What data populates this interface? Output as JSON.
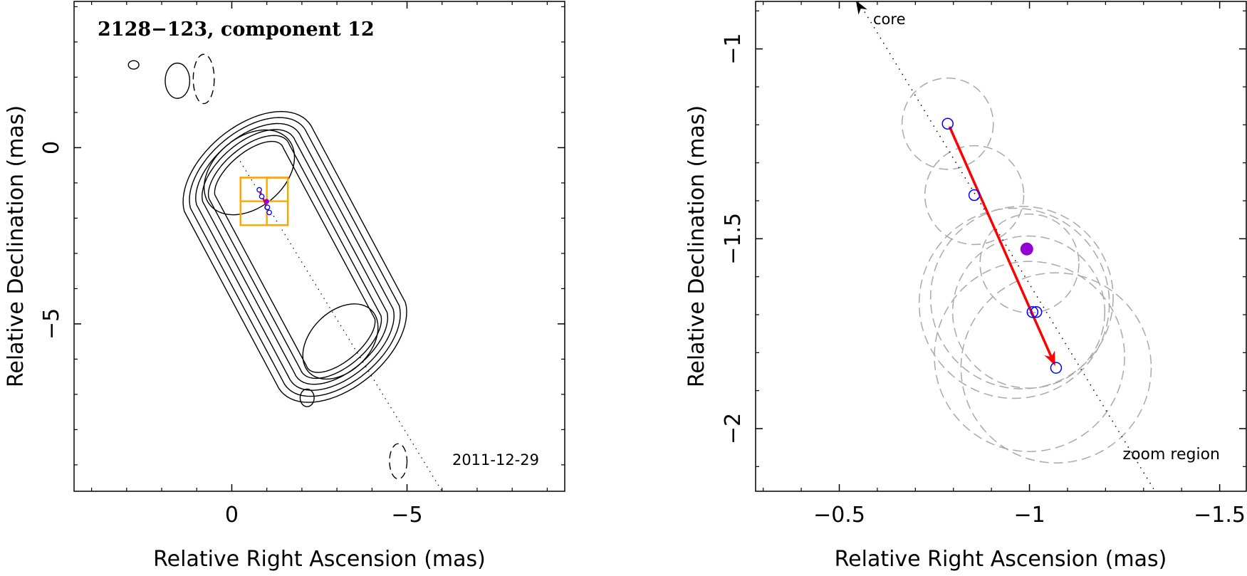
{
  "chart_data": [
    {
      "type": "contour",
      "title": "2128−123, component 12",
      "date_label": "2011-12-29",
      "xlabel": "Relative Right Ascension (mas)",
      "ylabel": "Relative Declination (mas)",
      "xlim": [
        4.5,
        -9.5
      ],
      "ylim": [
        -9.75,
        4.15
      ],
      "x_ticks": [
        {
          "v": 0,
          "label": "0"
        },
        {
          "v": -5,
          "label": "−5"
        }
      ],
      "y_ticks": [
        {
          "v": 0,
          "label": "0"
        },
        {
          "v": -5,
          "label": "−5"
        }
      ],
      "jet_axis": {
        "start": [
          0,
          0
        ],
        "end": [
          -6.0,
          -9.75
        ]
      },
      "contours": {
        "colors": {
          "positive": "#000000",
          "negative": "#000000"
        },
        "positive": [
          {
            "center": [
              -0.5,
              -0.7
            ],
            "rx": 1.0,
            "ry": 1.45,
            "angle": 50
          },
          {
            "center": [
              -3.1,
              -5.5
            ],
            "rx": 0.85,
            "ry": 1.25,
            "angle": 45
          },
          {
            "center": [
              1.55,
              1.9
            ],
            "rx": 0.35,
            "ry": 0.5,
            "angle": 0
          },
          {
            "center": [
              2.8,
              2.35
            ],
            "rx": 0.15,
            "ry": 0.12,
            "angle": 0
          },
          {
            "center": [
              -2.15,
              -7.1
            ],
            "rx": 0.2,
            "ry": 0.25,
            "angle": 0
          }
        ],
        "outer_levels": [
          {
            "ax": 1.3,
            "ay": 2.2,
            "scale": 1.0
          },
          {
            "ax": 1.15,
            "ay": 2.0,
            "scale": 0.9
          },
          {
            "ax": 1.0,
            "ay": 1.8,
            "scale": 0.8
          },
          {
            "ax": 0.85,
            "ay": 1.6,
            "scale": 0.7
          },
          {
            "ax": 0.7,
            "ay": 1.4,
            "scale": 0.6
          },
          {
            "ax": 0.55,
            "ay": 1.2,
            "scale": 0.5
          }
        ],
        "negative": [
          {
            "center": [
              0.8,
              1.95
            ],
            "rx": 0.3,
            "ry": 0.7,
            "angle": 0
          },
          {
            "center": [
              -4.75,
              -8.9
            ],
            "rx": 0.25,
            "ry": 0.5,
            "angle": 0
          }
        ]
      },
      "zoom_boxes": [
        {
          "x": [
            -0.25,
            -1.6
          ],
          "y": [
            -0.85,
            -2.2
          ]
        },
        {
          "x": [
            -0.25,
            -1.6
          ],
          "y": [
            -0.85,
            -1.52
          ]
        },
        {
          "x": [
            -1.0,
            -1.6
          ],
          "y": [
            -0.85,
            -2.2
          ]
        }
      ],
      "colors": {
        "zoom_box": "#ffa500"
      }
    },
    {
      "type": "scatter",
      "xlabel": "Relative Right Ascension (mas)",
      "ylabel": "Relative Declination (mas)",
      "xlim": [
        -0.28,
        -1.57
      ],
      "ylim": [
        -2.165,
        -0.875
      ],
      "x_ticks": [
        {
          "v": -0.5,
          "label": "−0.5"
        },
        {
          "v": -1.0,
          "label": "−1"
        },
        {
          "v": -1.5,
          "label": "−1.5"
        }
      ],
      "y_ticks": [
        {
          "v": -1.0,
          "label": "−1"
        },
        {
          "v": -1.5,
          "label": "−1.5"
        },
        {
          "v": -2.0,
          "label": "−2"
        }
      ],
      "core_label": "core",
      "zoom_region_label": "zoom region",
      "jet_axis": {
        "start": [
          -0.55,
          -0.875
        ],
        "end": [
          -1.33,
          -2.165
        ]
      },
      "core_arrow_tip": [
        -0.545,
        -0.875
      ],
      "colors": {
        "epochs": "#0000ff",
        "fitted_position": "#9400d3",
        "motion_vector": "#ff0000",
        "uncertainty": "#a9a9a9",
        "axis": "#000000"
      },
      "epochs": [
        {
          "x": -0.785,
          "y": -1.197,
          "radius": 0.12
        },
        {
          "x": -0.855,
          "y": -1.385,
          "radius": 0.13
        },
        {
          "x": -1.0,
          "y": -1.565,
          "radius": 0.13
        },
        {
          "x": -0.98,
          "y": -1.655,
          "radius": 0.24
        },
        {
          "x": -0.96,
          "y": -1.67,
          "radius": 0.25
        },
        {
          "x": -0.998,
          "y": -1.693,
          "radius": 0.2
        },
        {
          "x": -1.0,
          "y": -1.81,
          "radius": 0.25
        },
        {
          "x": -1.07,
          "y": -1.84,
          "radius": 0.25
        }
      ],
      "epoch_markers": [
        {
          "x": -0.785,
          "y": -1.197
        },
        {
          "x": -0.855,
          "y": -1.385
        },
        {
          "x": -1.008,
          "y": -1.693
        },
        {
          "x": -1.018,
          "y": -1.693
        },
        {
          "x": -1.07,
          "y": -1.84
        }
      ],
      "fitted_position": {
        "x": -0.993,
        "y": -1.527
      },
      "motion_vector": {
        "start": [
          -0.79,
          -1.205
        ],
        "end": [
          -1.068,
          -1.835
        ]
      }
    }
  ]
}
